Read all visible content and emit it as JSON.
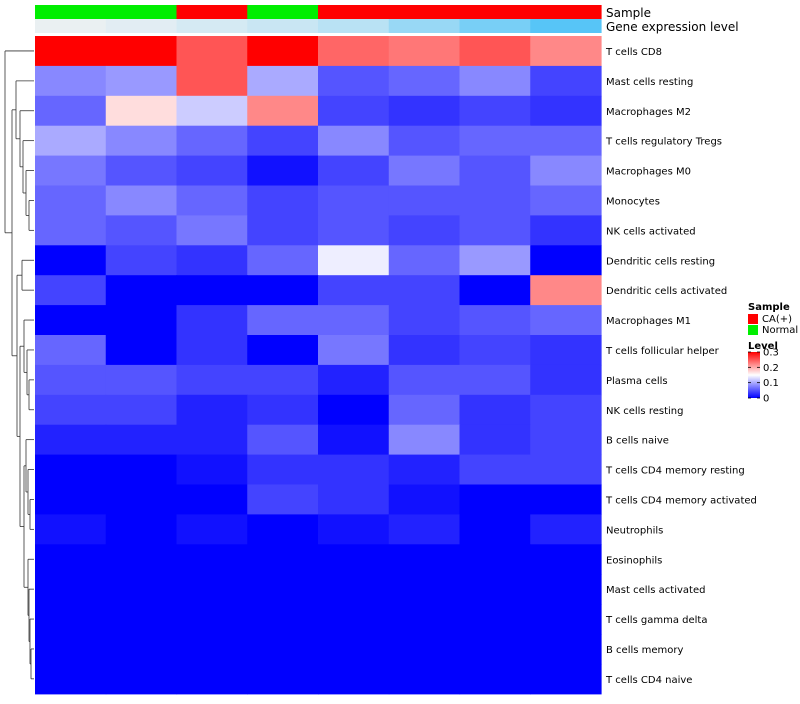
{
  "chart_data": {
    "type": "heatmap",
    "annotation_labels": [
      "Sample",
      "Gene expression level"
    ],
    "columns": [
      {
        "sample": "Normal",
        "expression_level": 0.05
      },
      {
        "sample": "Normal",
        "expression_level": 0.1
      },
      {
        "sample": "CA(+)",
        "expression_level": 0.18
      },
      {
        "sample": "Normal",
        "expression_level": 0.25
      },
      {
        "sample": "CA(+)",
        "expression_level": 0.35
      },
      {
        "sample": "CA(+)",
        "expression_level": 0.55
      },
      {
        "sample": "CA(+)",
        "expression_level": 0.75
      },
      {
        "sample": "CA(+)",
        "expression_level": 0.95
      }
    ],
    "rows": [
      "T cells CD8",
      "Mast cells resting",
      "Macrophages M2",
      "T cells regulatory  Tregs",
      "Macrophages M0",
      "Monocytes",
      "NK cells activated",
      "Dendritic cells resting",
      "Dendritic cells activated",
      "Macrophages M1",
      "T cells follicular helper",
      "Plasma cells",
      "NK cells resting",
      "B cells naive",
      "T cells CD4 memory resting",
      "T cells CD4 memory activated",
      "Neutrophils",
      "Eosinophils",
      "Mast cells activated",
      "T cells gamma delta",
      "B cells memory",
      "T cells CD4 naive"
    ],
    "values": [
      [
        0.3,
        0.3,
        0.25,
        0.3,
        0.24,
        0.23,
        0.25,
        0.22
      ],
      [
        0.08,
        0.09,
        0.25,
        0.1,
        0.05,
        0.06,
        0.08,
        0.04
      ],
      [
        0.06,
        0.17,
        0.12,
        0.22,
        0.04,
        0.03,
        0.04,
        0.03
      ],
      [
        0.1,
        0.08,
        0.06,
        0.04,
        0.08,
        0.05,
        0.06,
        0.06
      ],
      [
        0.07,
        0.05,
        0.04,
        0.01,
        0.04,
        0.07,
        0.05,
        0.08
      ],
      [
        0.06,
        0.08,
        0.06,
        0.04,
        0.05,
        0.05,
        0.05,
        0.06
      ],
      [
        0.06,
        0.05,
        0.07,
        0.04,
        0.05,
        0.04,
        0.05,
        0.03
      ],
      [
        0.0,
        0.04,
        0.03,
        0.06,
        0.14,
        0.06,
        0.09,
        0.0
      ],
      [
        0.04,
        0.0,
        0.0,
        0.0,
        0.04,
        0.04,
        0.0,
        0.22
      ],
      [
        0.0,
        0.0,
        0.03,
        0.06,
        0.06,
        0.04,
        0.05,
        0.06
      ],
      [
        0.06,
        0.0,
        0.03,
        0.0,
        0.07,
        0.03,
        0.04,
        0.03
      ],
      [
        0.05,
        0.05,
        0.04,
        0.04,
        0.02,
        0.05,
        0.05,
        0.03
      ],
      [
        0.04,
        0.04,
        0.02,
        0.03,
        0.0,
        0.06,
        0.03,
        0.04
      ],
      [
        0.02,
        0.02,
        0.02,
        0.05,
        0.01,
        0.08,
        0.03,
        0.04
      ],
      [
        0.0,
        0.0,
        0.01,
        0.03,
        0.03,
        0.02,
        0.04,
        0.04
      ],
      [
        0.0,
        0.0,
        0.0,
        0.04,
        0.03,
        0.01,
        0.0,
        0.0
      ],
      [
        0.01,
        0.0,
        0.01,
        0.0,
        0.01,
        0.02,
        0.0,
        0.02
      ],
      [
        0.0,
        0.0,
        0.0,
        0.0,
        0.0,
        0.0,
        0.0,
        0.0
      ],
      [
        0.0,
        0.0,
        0.0,
        0.0,
        0.0,
        0.0,
        0.0,
        0.0
      ],
      [
        0.0,
        0.0,
        0.0,
        0.0,
        0.0,
        0.0,
        0.0,
        0.0
      ],
      [
        0.0,
        0.0,
        0.0,
        0.0,
        0.0,
        0.0,
        0.0,
        0.0
      ],
      [
        0.0,
        0.0,
        0.0,
        0.0,
        0.0,
        0.0,
        0.0,
        0.0
      ]
    ],
    "value_range": [
      0,
      0.3
    ],
    "color_scale": [
      "#0000ff",
      "#ffffff",
      "#ff0000"
    ],
    "legend": {
      "sample": {
        "title": "Sample",
        "entries": [
          {
            "label": "CA(+)",
            "color": "#ff0000"
          },
          {
            "label": "Normal",
            "color": "#00ee00"
          }
        ]
      },
      "level": {
        "title": "Level",
        "ticks": [
          "0.3",
          "0.2",
          "0.1",
          "0"
        ],
        "tick_values": [
          0.3,
          0.2,
          0.1,
          0
        ]
      }
    },
    "expression_gradient": [
      "#f2f2f2",
      "#4fc3f7"
    ],
    "row_dendrogram": true
  }
}
